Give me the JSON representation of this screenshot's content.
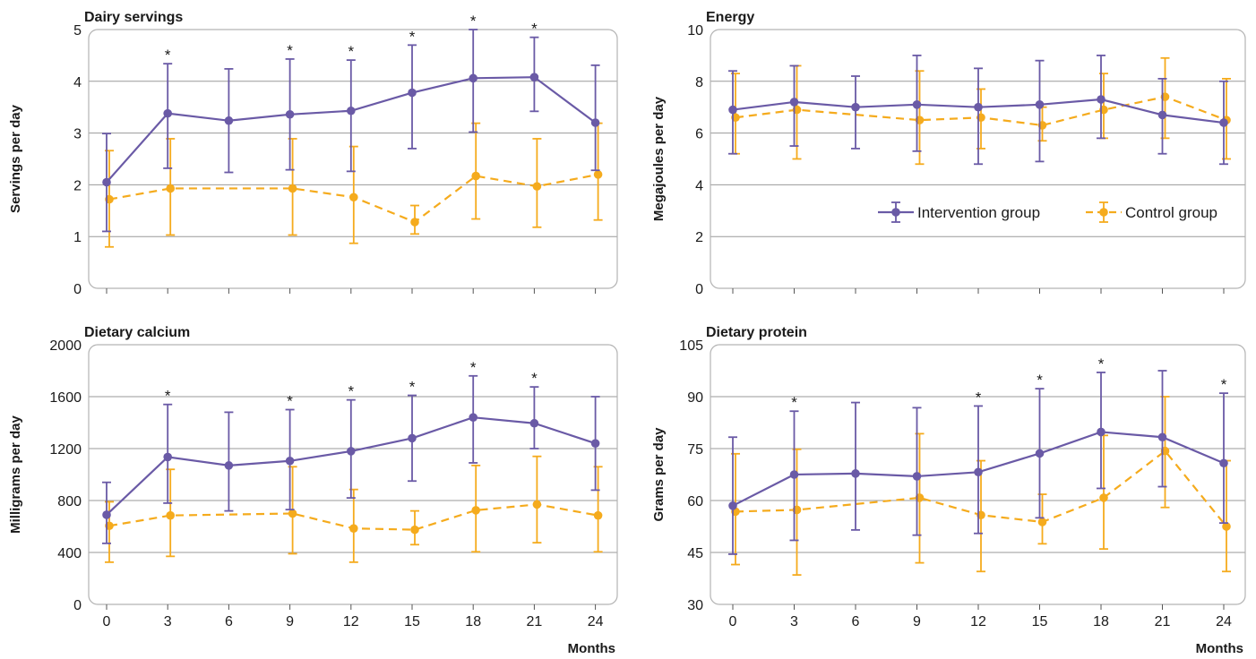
{
  "colors": {
    "intervention": "#6a5aa6",
    "control": "#f5ab1d",
    "grid": "#9a9a9a",
    "frame": "#b3b3b3"
  },
  "legend": {
    "placement": "inside-top-right-panel-energy",
    "items": [
      {
        "label": "Intervention group",
        "style": "solid",
        "color": "#6a5aa6"
      },
      {
        "label": "Control group",
        "style": "dashed",
        "color": "#f5ab1d"
      }
    ]
  },
  "chart_data": [
    {
      "type": "line",
      "title": "Dairy servings",
      "ylabel": "Servings per day",
      "xlabel": "",
      "x": [
        0,
        3,
        6,
        9,
        12,
        15,
        18,
        21,
        24
      ],
      "xticks": [
        "0",
        "3",
        "6",
        "9",
        "12",
        "15",
        "18",
        "21",
        "24"
      ],
      "show_xtick_labels": false,
      "ylim": [
        0,
        5
      ],
      "yticks": [
        0,
        1,
        2,
        3,
        4,
        5
      ],
      "ytick_labels": [
        "0",
        "1",
        "2",
        "3",
        "4",
        "5"
      ],
      "grid": true,
      "significance_marker": "*",
      "significant_at": [
        3,
        9,
        12,
        15,
        18,
        21
      ],
      "series": [
        {
          "name": "Intervention group",
          "style": "solid",
          "x": [
            0,
            3,
            6,
            9,
            12,
            15,
            18,
            21,
            24
          ],
          "values": [
            2.05,
            3.38,
            3.24,
            3.36,
            3.43,
            3.78,
            4.06,
            4.08,
            3.2
          ],
          "lower": [
            1.1,
            2.32,
            2.24,
            2.29,
            2.26,
            2.7,
            3.02,
            3.42,
            2.28
          ],
          "upper": [
            2.99,
            4.34,
            4.24,
            4.43,
            4.41,
            4.7,
            5.0,
            4.85,
            4.31
          ]
        },
        {
          "name": "Control group",
          "style": "dashed",
          "x": [
            0,
            3,
            9,
            12,
            15,
            18,
            21,
            24
          ],
          "values": [
            1.72,
            1.93,
            1.93,
            1.76,
            1.28,
            2.17,
            1.97,
            2.2
          ],
          "lower": [
            0.8,
            1.03,
            1.03,
            0.87,
            1.05,
            1.34,
            1.18,
            1.32
          ],
          "upper": [
            2.66,
            2.89,
            2.89,
            2.74,
            1.6,
            3.19,
            2.89,
            3.19
          ]
        }
      ]
    },
    {
      "type": "line",
      "title": "Energy",
      "ylabel": "Megajoules per day",
      "xlabel": "",
      "x": [
        0,
        3,
        6,
        9,
        12,
        15,
        18,
        21,
        24
      ],
      "xticks": [
        "0",
        "3",
        "6",
        "9",
        "12",
        "15",
        "18",
        "21",
        "24"
      ],
      "show_xtick_labels": false,
      "ylim": [
        0,
        10
      ],
      "yticks": [
        0,
        2,
        4,
        6,
        8,
        10
      ],
      "ytick_labels": [
        "0",
        "2",
        "4",
        "6",
        "8",
        "10"
      ],
      "grid": true,
      "significance_marker": "*",
      "significant_at": [],
      "series": [
        {
          "name": "Intervention group",
          "style": "solid",
          "x": [
            0,
            3,
            6,
            9,
            12,
            15,
            18,
            21,
            24
          ],
          "values": [
            6.9,
            7.2,
            7.0,
            7.1,
            7.0,
            7.1,
            7.3,
            6.7,
            6.4
          ],
          "lower": [
            5.2,
            5.5,
            5.4,
            5.3,
            4.8,
            4.9,
            5.8,
            5.2,
            4.8
          ],
          "upper": [
            8.4,
            8.6,
            8.2,
            9.0,
            8.5,
            8.8,
            9.0,
            8.1,
            8.0
          ]
        },
        {
          "name": "Control group",
          "style": "dashed",
          "x": [
            0,
            3,
            9,
            12,
            15,
            18,
            21,
            24
          ],
          "values": [
            6.6,
            6.9,
            6.5,
            6.6,
            6.3,
            6.9,
            7.4,
            6.5
          ],
          "lower": [
            5.2,
            5.0,
            4.8,
            5.4,
            5.7,
            5.8,
            5.8,
            5.0
          ],
          "upper": [
            8.3,
            8.6,
            8.4,
            7.7,
            7.0,
            8.3,
            8.9,
            8.1
          ]
        }
      ]
    },
    {
      "type": "line",
      "title": "Dietary calcium",
      "ylabel": "Milligrams per day",
      "xlabel": "Months",
      "x": [
        0,
        3,
        6,
        9,
        12,
        15,
        18,
        21,
        24
      ],
      "xticks": [
        "0",
        "3",
        "6",
        "9",
        "12",
        "15",
        "18",
        "21",
        "24"
      ],
      "show_xtick_labels": true,
      "ylim": [
        0,
        2000
      ],
      "yticks": [
        0,
        400,
        800,
        1200,
        1600,
        2000
      ],
      "ytick_labels": [
        "0",
        "400",
        "800",
        "1200",
        "1600",
        "2000"
      ],
      "grid": true,
      "significance_marker": "*",
      "significant_at": [
        3,
        9,
        12,
        15,
        18,
        21
      ],
      "series": [
        {
          "name": "Intervention group",
          "style": "solid",
          "x": [
            0,
            3,
            6,
            9,
            12,
            15,
            18,
            21,
            24
          ],
          "values": [
            690,
            1135,
            1070,
            1105,
            1180,
            1280,
            1440,
            1395,
            1240
          ],
          "lower": [
            470,
            780,
            720,
            730,
            820,
            950,
            1090,
            1200,
            880
          ],
          "upper": [
            940,
            1540,
            1480,
            1500,
            1575,
            1610,
            1760,
            1675,
            1600
          ]
        },
        {
          "name": "Control group",
          "style": "dashed",
          "x": [
            0,
            3,
            9,
            12,
            15,
            18,
            21,
            24
          ],
          "values": [
            605,
            685,
            700,
            585,
            575,
            725,
            770,
            685
          ],
          "lower": [
            325,
            370,
            390,
            325,
            460,
            405,
            475,
            405
          ],
          "upper": [
            790,
            1040,
            1060,
            885,
            720,
            1070,
            1140,
            1060
          ]
        }
      ]
    },
    {
      "type": "line",
      "title": "Dietary protein",
      "ylabel": "Grams per day",
      "xlabel": "Months",
      "x": [
        0,
        3,
        6,
        9,
        12,
        15,
        18,
        21,
        24
      ],
      "xticks": [
        "0",
        "3",
        "6",
        "9",
        "12",
        "15",
        "18",
        "21",
        "24"
      ],
      "show_xtick_labels": true,
      "ylim": [
        30,
        105
      ],
      "yticks": [
        30,
        45,
        60,
        75,
        90,
        105
      ],
      "ytick_labels": [
        "30",
        "45",
        "60",
        "75",
        "90",
        "105"
      ],
      "grid": true,
      "significance_marker": "*",
      "significant_at": [
        3,
        12,
        15,
        18,
        24
      ],
      "series": [
        {
          "name": "Intervention group",
          "style": "solid",
          "x": [
            0,
            3,
            6,
            9,
            12,
            15,
            18,
            21,
            24
          ],
          "values": [
            58.5,
            67.5,
            67.8,
            67.0,
            68.2,
            73.6,
            79.8,
            78.3,
            70.8
          ],
          "lower": [
            44.5,
            48.5,
            51.5,
            50.0,
            50.5,
            55.0,
            63.5,
            64.0,
            53.5
          ],
          "upper": [
            78.3,
            85.8,
            88.3,
            86.8,
            87.3,
            92.3,
            97.0,
            97.5,
            91.0
          ]
        },
        {
          "name": "Control group",
          "style": "dashed",
          "x": [
            0,
            3,
            9,
            12,
            15,
            18,
            21,
            24
          ],
          "values": [
            56.8,
            57.3,
            60.8,
            55.8,
            53.8,
            60.8,
            74.3,
            52.5
          ],
          "lower": [
            41.5,
            38.5,
            42.0,
            39.5,
            47.5,
            46.0,
            58.0,
            39.5
          ],
          "upper": [
            73.5,
            74.8,
            79.3,
            71.5,
            61.8,
            78.8,
            90.0,
            71.5
          ]
        }
      ]
    }
  ]
}
